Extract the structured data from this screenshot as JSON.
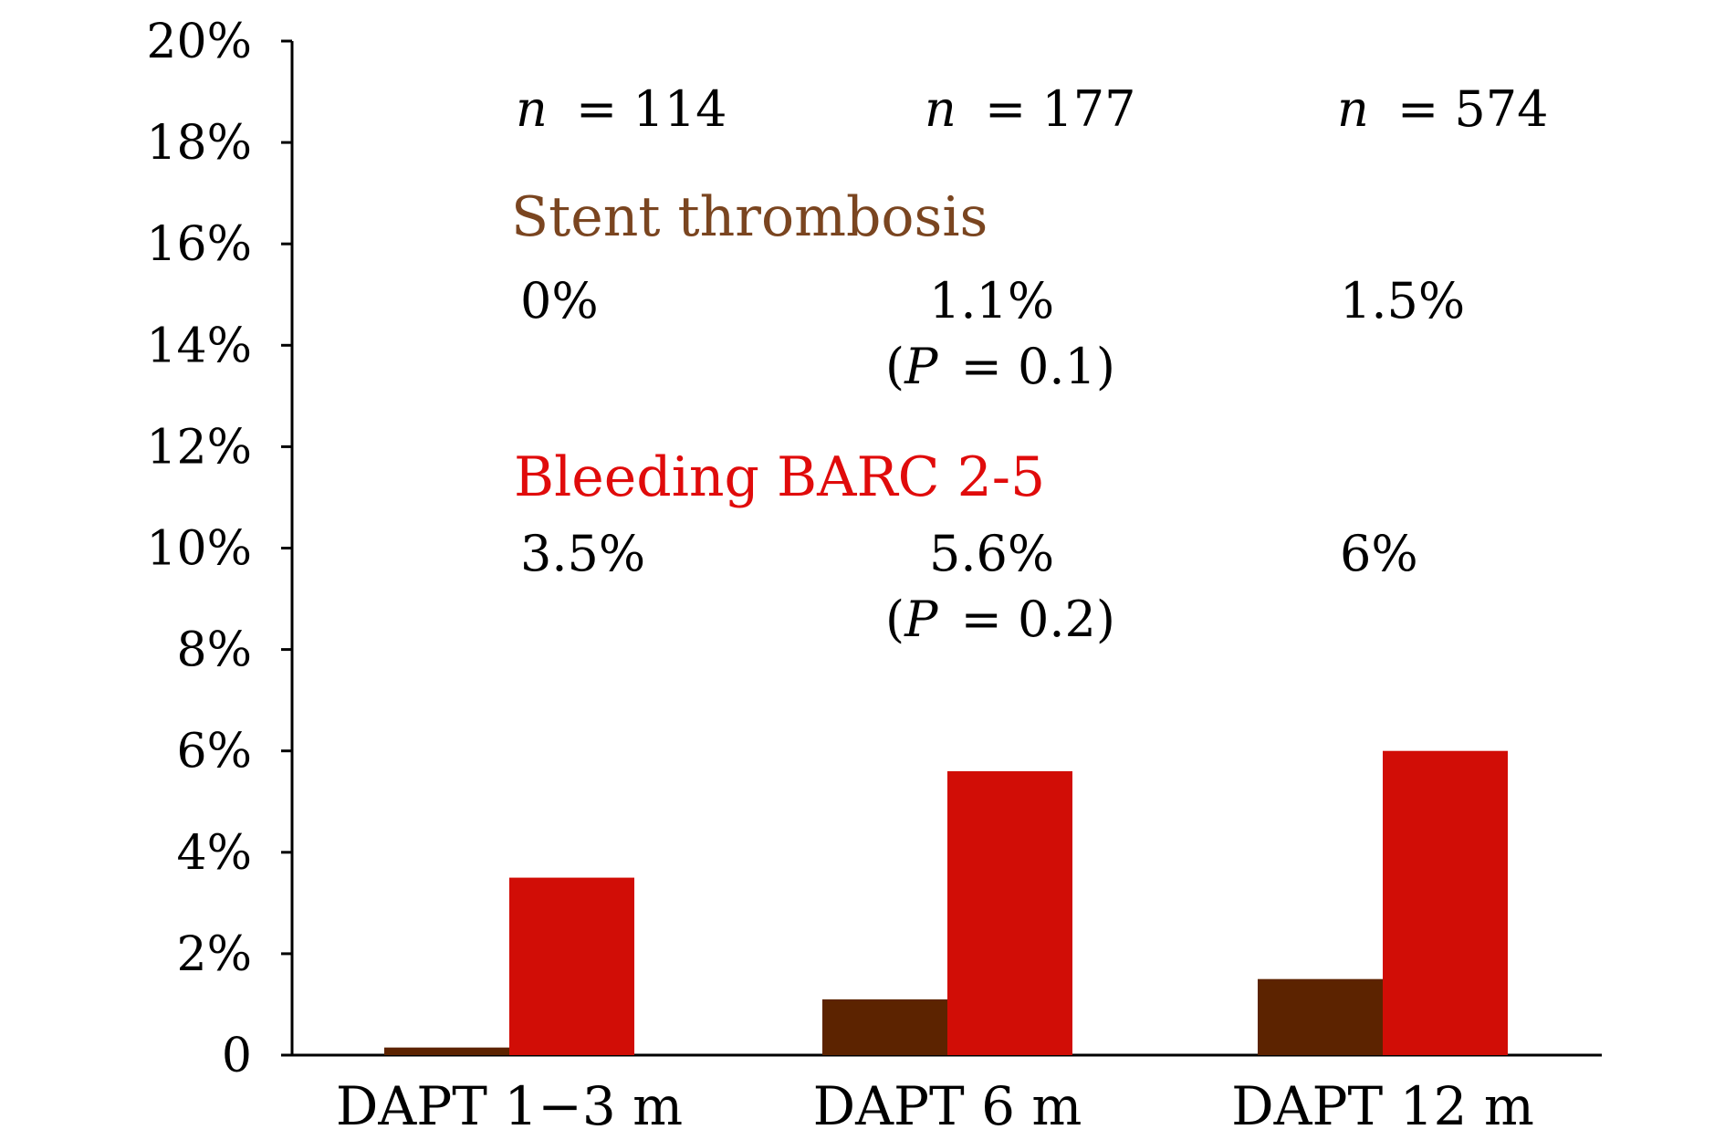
{
  "chart_data": {
    "type": "bar",
    "title": "",
    "xlabel": "",
    "ylabel": "",
    "ylim": [
      0,
      20
    ],
    "yticks": [
      0,
      2,
      4,
      6,
      8,
      10,
      12,
      14,
      16,
      18,
      20
    ],
    "ytick_labels": [
      "0",
      "2%",
      "4%",
      "6%",
      "8%",
      "10%",
      "12%",
      "14%",
      "16%",
      "18%",
      "20%"
    ],
    "grid": false,
    "categories": [
      "DAPT 1−3 m",
      "DAPT 6 m",
      "DAPT 12 m"
    ],
    "series": [
      {
        "name": "Stent thrombosis",
        "color": "#5c2300",
        "values": [
          0.15,
          1.1,
          1.5
        ]
      },
      {
        "name": "Bleeding BARC 2-5",
        "color": "#d10d06",
        "values": [
          3.5,
          5.6,
          6.0
        ]
      }
    ],
    "annotations": {
      "n_prefix": "n",
      "n_values": [
        "= 114",
        "= 177",
        "= 574"
      ],
      "stent_title": "Stent thrombosis",
      "stent_title_color": "#7a4520",
      "stent_values": [
        "0%",
        "1.1%",
        "1.5%"
      ],
      "stent_p": "= 0.1)",
      "bleeding_title": "Bleeding BARC 2-5",
      "bleeding_title_color": "#e00b0b",
      "bleeding_values": [
        "3.5%",
        "5.6%",
        "6%"
      ],
      "bleeding_p": "= 0.2)",
      "p_open": "(",
      "p_symbol": "P"
    }
  }
}
